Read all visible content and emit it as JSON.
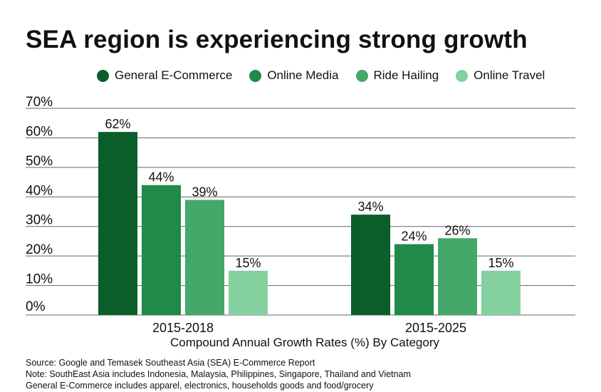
{
  "title": "SEA region is experiencing strong growth",
  "colors": {
    "general_ecommerce": "#0b5e2a",
    "online_media": "#208a48",
    "ride_hailing": "#43a86a",
    "online_travel": "#84d09e",
    "gridline": "#666666"
  },
  "legend": [
    {
      "label": "General E-Commerce",
      "color": "#0b5e2a"
    },
    {
      "label": "Online Media",
      "color": "#208a48"
    },
    {
      "label": "Ride Hailing",
      "color": "#43a86a"
    },
    {
      "label": "Online Travel",
      "color": "#84d09e"
    }
  ],
  "chart_data": {
    "type": "bar",
    "title": "SEA region is experiencing strong growth",
    "categories": [
      "2015-2018",
      "2015-2025"
    ],
    "xlabel": "Compound Annual Growth Rates (%) By Category",
    "ylabel": "",
    "ylim": [
      0,
      70
    ],
    "yticks": [
      "0%",
      "10%",
      "20%",
      "30%",
      "40%",
      "50%",
      "60%",
      "70%"
    ],
    "grid": true,
    "legend_position": "top",
    "series": [
      {
        "name": "General E-Commerce",
        "values": [
          62,
          34
        ],
        "labels": [
          "62%",
          "34%"
        ],
        "color": "#0b5e2a"
      },
      {
        "name": "Online Media",
        "values": [
          44,
          24
        ],
        "labels": [
          "44%",
          "24%"
        ],
        "color": "#208a48"
      },
      {
        "name": "Ride Hailing",
        "values": [
          39,
          26
        ],
        "labels": [
          "39%",
          "26%"
        ],
        "color": "#43a86a"
      },
      {
        "name": "Online Travel",
        "values": [
          15,
          15
        ],
        "labels": [
          "15%",
          "15%"
        ],
        "color": "#84d09e"
      }
    ]
  },
  "footnotes": [
    "Source: Google and Temasek Southeast Asia (SEA) E-Commerce Report",
    "Note: SouthEast Asia includes Indonesia, Malaysia, Philippines, Singapore, Thailand and Vietnam",
    "General E-Commerce includes apparel, electronics, households goods and food/grocery"
  ]
}
